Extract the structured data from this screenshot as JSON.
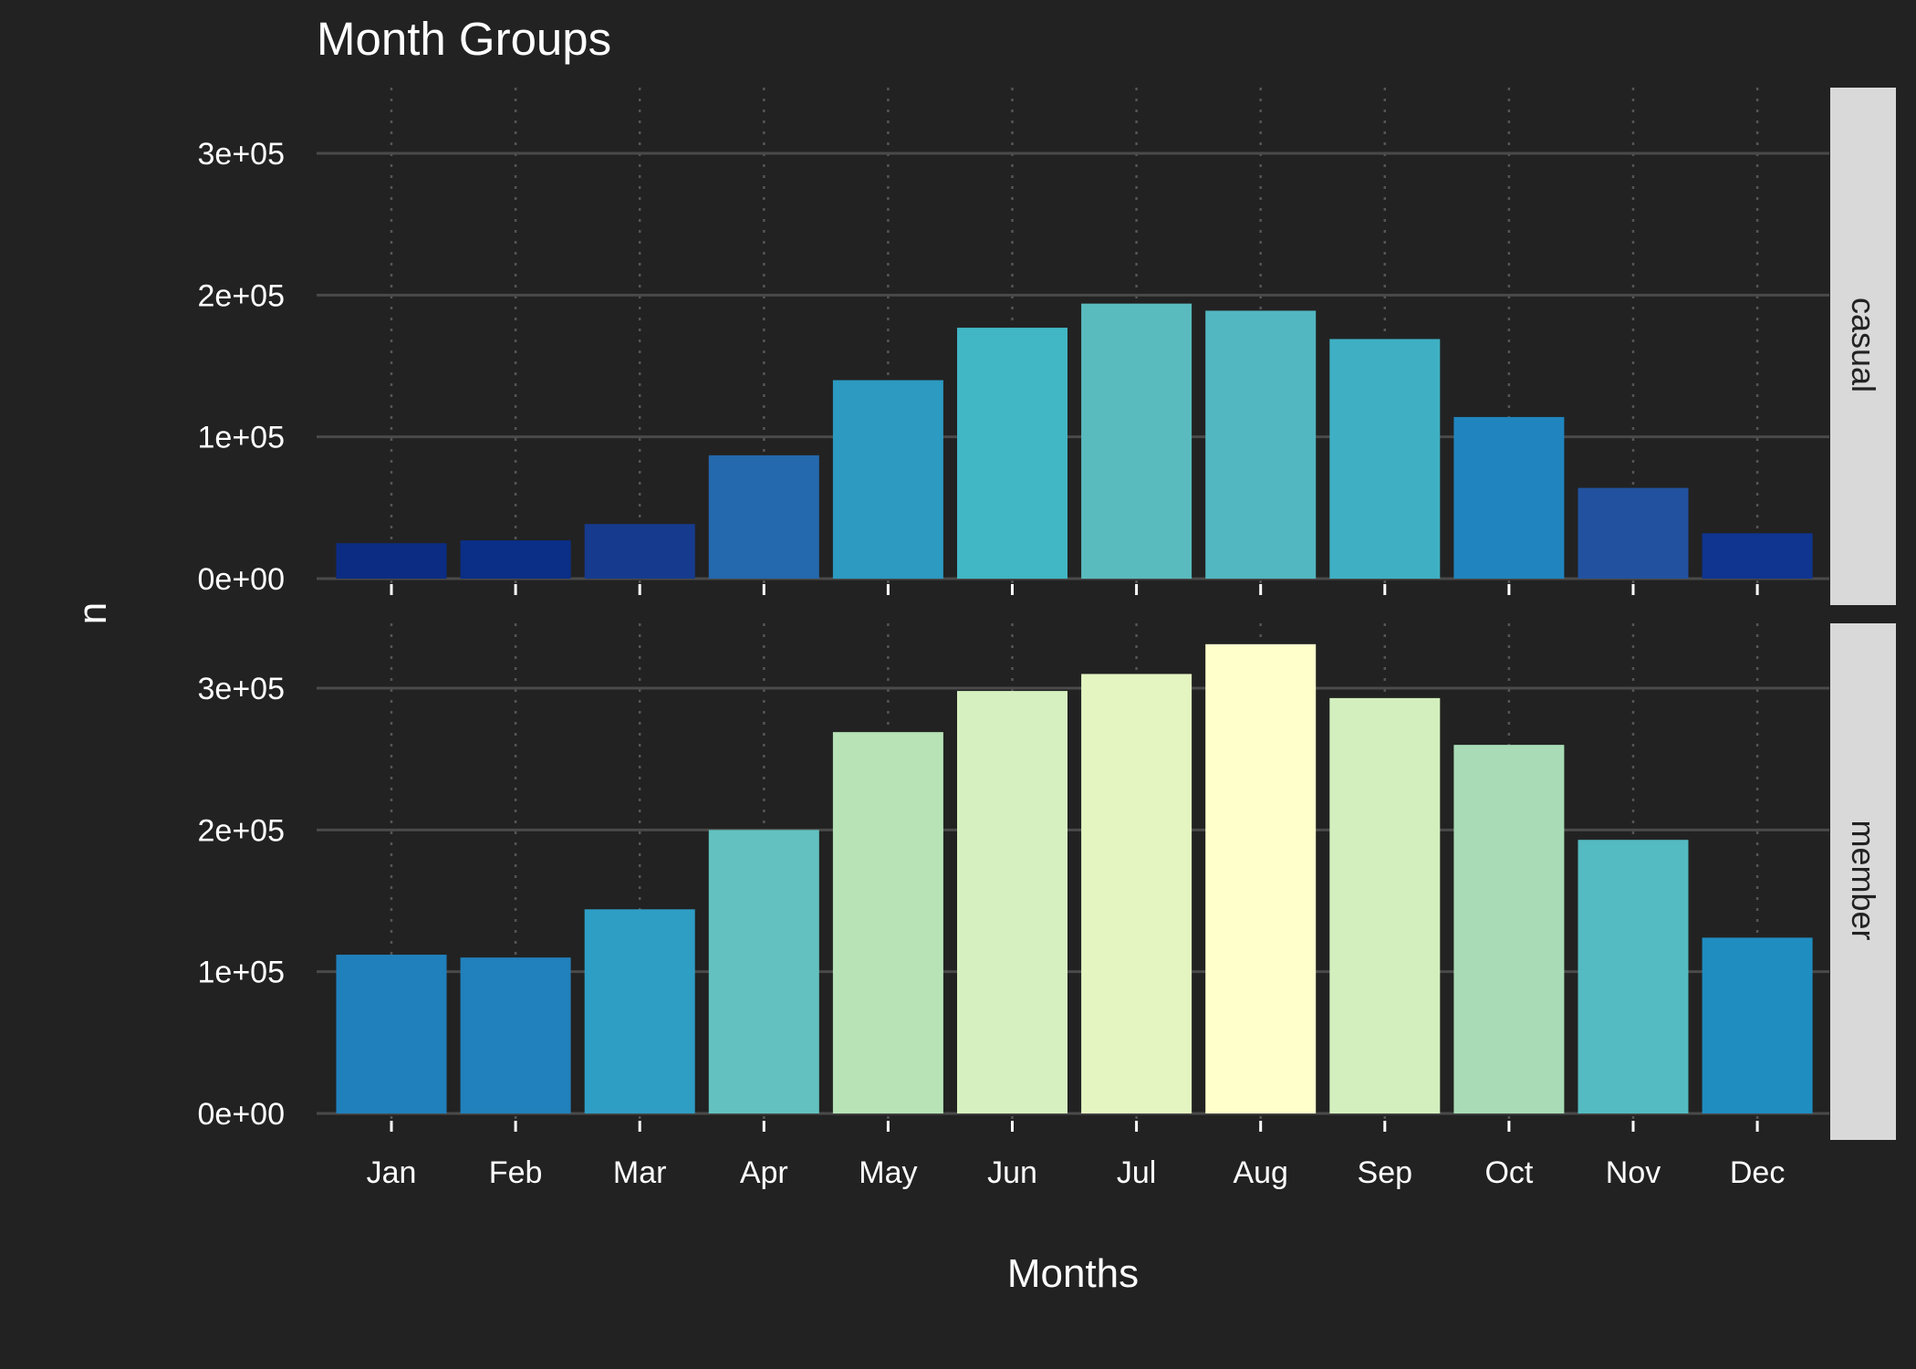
{
  "chart_data": {
    "type": "bar",
    "title": "Month Groups",
    "xlabel": "Months",
    "ylabel": "n",
    "categories": [
      "Jan",
      "Feb",
      "Mar",
      "Apr",
      "May",
      "Jun",
      "Jul",
      "Aug",
      "Sep",
      "Oct",
      "Nov",
      "Dec"
    ],
    "y_ticks": [
      0,
      100000,
      200000,
      300000
    ],
    "y_tick_labels": [
      "0e+00",
      "1e+05",
      "2e+05",
      "3e+05"
    ],
    "ylim": [
      0,
      345000
    ],
    "facet_layout": "vertical stack, strip labels on right",
    "grid": {
      "y_major": true,
      "x_dotted": true
    },
    "panels": [
      {
        "name": "casual",
        "values": [
          25000,
          27000,
          38500,
          87000,
          140000,
          177000,
          194000,
          189000,
          169000,
          114000,
          64000,
          32000
        ],
        "colors": [
          "#0c2c84",
          "#0b2f87",
          "#163b8e",
          "#2468ae",
          "#2c9ac1",
          "#41b6c4",
          "#5abbbe",
          "#52b7c0",
          "#3fb0c3",
          "#2085be",
          "#22529f",
          "#0f3590"
        ]
      },
      {
        "name": "member",
        "values": [
          112000,
          110000,
          144000,
          200000,
          269000,
          298000,
          310000,
          331000,
          293000,
          260000,
          193000,
          124000
        ],
        "colors": [
          "#2080bc",
          "#2181bc",
          "#2f9ec4",
          "#63c2c0",
          "#b7e3b6",
          "#d7f0c0",
          "#e4f5c2",
          "#ffffcc",
          "#d3efbe",
          "#a9dcb6",
          "#54bbc2",
          "#1f8dc0"
        ]
      }
    ]
  }
}
